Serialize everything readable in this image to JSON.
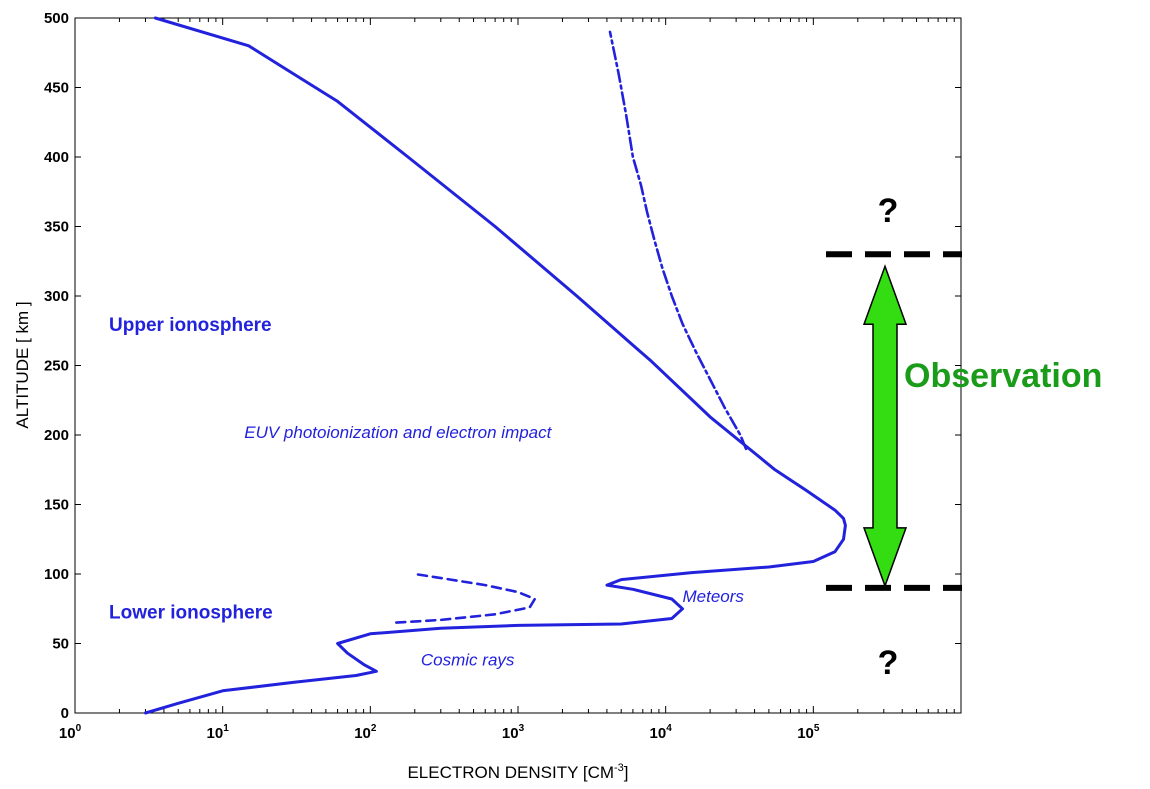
{
  "colors": {
    "profile": "#2222dd",
    "text_blue": "#2222dd",
    "observation": "#1a9c1a",
    "arrow_fill": "#33dd11",
    "marker": "#000000"
  },
  "chart_data": {
    "type": "line",
    "title": "",
    "xlabel": "ELECTRON DENSITY [CM",
    "xlabel_sup": "-3",
    "xlabel_end": "]",
    "ylabel": "ALTITUDE  [ km ]",
    "xscale": "log",
    "xlim": [
      1,
      1000000
    ],
    "ylim": [
      0,
      500
    ],
    "grid": false,
    "xticks": [
      {
        "value": 1,
        "base": "10",
        "exp": "0"
      },
      {
        "value": 10,
        "base": "10",
        "exp": "1"
      },
      {
        "value": 100,
        "base": "10",
        "exp": "2"
      },
      {
        "value": 1000,
        "base": "10",
        "exp": "3"
      },
      {
        "value": 10000,
        "base": "10",
        "exp": "4"
      },
      {
        "value": 100000,
        "base": "10",
        "exp": "5"
      }
    ],
    "yticks": [
      0,
      50,
      100,
      150,
      200,
      250,
      300,
      350,
      400,
      450,
      500
    ],
    "series": [
      {
        "style": "solid",
        "points": [
          [
            3,
            0
          ],
          [
            5,
            7
          ],
          [
            10,
            16
          ],
          [
            30,
            22
          ],
          [
            80,
            27
          ],
          [
            110,
            30
          ],
          [
            90,
            35
          ],
          [
            70,
            43
          ],
          [
            60,
            50
          ],
          [
            100,
            57
          ],
          [
            300,
            61
          ],
          [
            1000,
            63
          ],
          [
            5000,
            64
          ],
          [
            11000,
            68
          ],
          [
            13000,
            75
          ],
          [
            11000,
            82
          ],
          [
            6000,
            89
          ],
          [
            4000,
            92
          ],
          [
            5000,
            96
          ],
          [
            15000,
            101
          ],
          [
            50000,
            105
          ],
          [
            100000,
            109
          ],
          [
            140000,
            116
          ],
          [
            160000,
            125
          ],
          [
            165000,
            135
          ],
          [
            160000,
            140
          ],
          [
            140000,
            146
          ],
          [
            90000,
            160
          ],
          [
            55000,
            175
          ],
          [
            35000,
            192
          ],
          [
            20000,
            213
          ],
          [
            8000,
            253
          ],
          [
            2500,
            300
          ],
          [
            700,
            350
          ],
          [
            180,
            400
          ],
          [
            60,
            440
          ],
          [
            30,
            460
          ],
          [
            15,
            480
          ],
          [
            3.5,
            500
          ]
        ]
      },
      {
        "style": "dashdot",
        "points": [
          [
            35000,
            190
          ],
          [
            32000,
            200
          ],
          [
            25000,
            220
          ],
          [
            20000,
            240
          ],
          [
            16000,
            260
          ],
          [
            13000,
            280
          ],
          [
            11000,
            300
          ],
          [
            9500,
            320
          ],
          [
            8400,
            340
          ],
          [
            7500,
            360
          ],
          [
            6800,
            380
          ],
          [
            6000,
            400
          ],
          [
            5400,
            430
          ],
          [
            4800,
            460
          ],
          [
            4200,
            490
          ]
        ]
      },
      {
        "style": "dashed",
        "points": [
          [
            150,
            65
          ],
          [
            300,
            67
          ],
          [
            700,
            71
          ],
          [
            1200,
            76
          ],
          [
            1300,
            82
          ],
          [
            1000,
            87
          ],
          [
            600,
            92
          ],
          [
            350,
            96
          ],
          [
            200,
            100
          ]
        ]
      }
    ],
    "annotations": [
      {
        "text": "Upper ionosphere",
        "x": 1.7,
        "y": 275,
        "style": "region"
      },
      {
        "text": "Lower ionosphere",
        "x": 1.7,
        "y": 68,
        "style": "region"
      },
      {
        "text": "EUV photoionization and electron impact",
        "x": 14,
        "y": 198,
        "style": "italic"
      },
      {
        "text": "Meteors",
        "x": 13000,
        "y": 80,
        "style": "italic"
      },
      {
        "text": "Cosmic rays",
        "x": 220,
        "y": 34,
        "style": "italic"
      }
    ]
  },
  "observation": {
    "label": "Observation",
    "question_top": "?",
    "question_bottom": "?",
    "top_altitude": 330,
    "bottom_altitude": 90
  }
}
